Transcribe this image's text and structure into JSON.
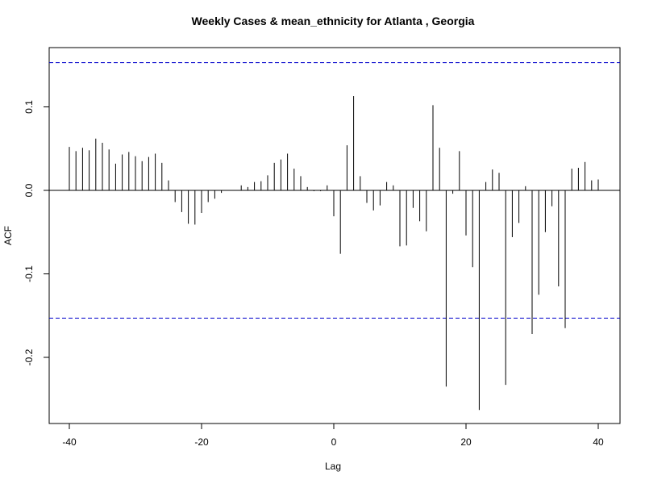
{
  "chart_data": {
    "type": "bar",
    "title": "Weekly Cases & mean_ethnicity for Atlanta , Georgia",
    "xlabel": "Lag",
    "ylabel": "ACF",
    "xlim": [
      -42,
      43
    ],
    "ylim": [
      -0.28,
      0.17
    ],
    "x_ticks": [
      -40,
      -20,
      0,
      20,
      40
    ],
    "y_ticks": [
      0.1,
      0.0,
      -0.1,
      -0.2
    ],
    "y_tick_labels": [
      "0.1",
      "0.0",
      "-0.1",
      "-0.2"
    ],
    "confidence_band": [
      0.153,
      -0.153
    ],
    "grid": false,
    "lags": [
      -40,
      -39,
      -38,
      -37,
      -36,
      -35,
      -34,
      -33,
      -32,
      -31,
      -30,
      -29,
      -28,
      -27,
      -26,
      -25,
      -24,
      -23,
      -22,
      -21,
      -20,
      -19,
      -18,
      -17,
      -16,
      -15,
      -14,
      -13,
      -12,
      -11,
      -10,
      -9,
      -8,
      -7,
      -6,
      -5,
      -4,
      -3,
      -2,
      -1,
      0,
      1,
      2,
      3,
      4,
      5,
      6,
      7,
      8,
      9,
      10,
      11,
      12,
      13,
      14,
      15,
      16,
      17,
      18,
      19,
      20,
      21,
      22,
      23,
      24,
      25,
      26,
      27,
      28,
      29,
      30,
      31,
      32,
      33,
      34,
      35,
      36,
      37,
      38,
      39,
      40
    ],
    "values": [
      0.052,
      0.047,
      0.051,
      0.048,
      0.062,
      0.057,
      0.049,
      0.032,
      0.043,
      0.046,
      0.041,
      0.035,
      0.04,
      0.044,
      0.033,
      0.012,
      -0.014,
      -0.026,
      -0.04,
      -0.041,
      -0.027,
      -0.014,
      -0.01,
      -0.003,
      0.0,
      0.0,
      0.006,
      0.004,
      0.01,
      0.011,
      0.018,
      0.033,
      0.037,
      0.044,
      0.026,
      0.017,
      0.004,
      -0.001,
      -0.001,
      0.006,
      -0.031,
      -0.076,
      0.054,
      0.113,
      0.017,
      -0.015,
      -0.024,
      -0.018,
      0.01,
      0.006,
      -0.067,
      -0.066,
      -0.021,
      -0.037,
      -0.049,
      0.102,
      0.051,
      -0.235,
      -0.004,
      0.047,
      -0.054,
      -0.092,
      -0.263,
      0.01,
      0.025,
      0.021,
      -0.233,
      -0.056,
      -0.039,
      0.005,
      -0.172,
      -0.125,
      -0.05,
      -0.019,
      -0.115,
      -0.165,
      0.026,
      0.027,
      0.034,
      0.012,
      0.013
    ]
  }
}
